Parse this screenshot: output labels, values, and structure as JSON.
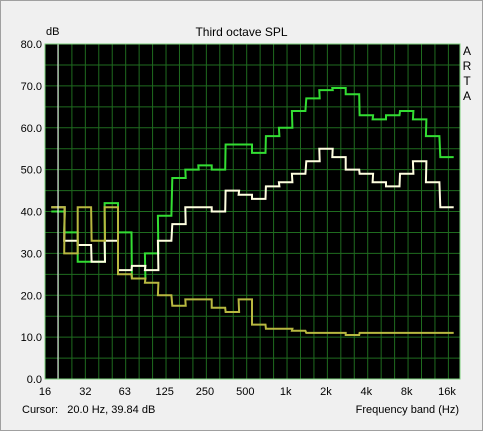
{
  "window": {
    "title": "Third octave SPL",
    "watermark_letters": [
      "A",
      "R",
      "T",
      "A"
    ],
    "status": {
      "cursor_label": "Cursor:",
      "cursor_value": "20.0 Hz, 39.84 dB"
    }
  },
  "colors": {
    "plot_background": "#000000",
    "grid": "#1f6b1f",
    "axes_border": "#7ad07a",
    "cursor_line": "#ffffff"
  },
  "chart_data": {
    "type": "line",
    "title": "Third octave SPL",
    "ylabel": "dB",
    "xlabel": "Frequency band (Hz)",
    "x_scale": "log",
    "xlim": [
      16,
      20000
    ],
    "ylim": [
      0,
      80
    ],
    "grid": true,
    "x_ticks": [
      {
        "value": 16,
        "label": "16"
      },
      {
        "value": 32,
        "label": "32"
      },
      {
        "value": 63,
        "label": "63"
      },
      {
        "value": 125,
        "label": "125"
      },
      {
        "value": 250,
        "label": "250"
      },
      {
        "value": 500,
        "label": "500"
      },
      {
        "value": 1000,
        "label": "1k"
      },
      {
        "value": 2000,
        "label": "2k"
      },
      {
        "value": 4000,
        "label": "4k"
      },
      {
        "value": 8000,
        "label": "8k"
      },
      {
        "value": 16000,
        "label": "16k"
      }
    ],
    "y_ticks": [
      {
        "value": 0,
        "label": "0.0"
      },
      {
        "value": 10,
        "label": "10.0"
      },
      {
        "value": 20,
        "label": "20.0"
      },
      {
        "value": 30,
        "label": "30.0"
      },
      {
        "value": 40,
        "label": "40.0"
      },
      {
        "value": 50,
        "label": "50.0"
      },
      {
        "value": 60,
        "label": "60.0"
      },
      {
        "value": 70,
        "label": "70.0"
      },
      {
        "value": 80,
        "label": "80.0"
      }
    ],
    "cursor_x": 20,
    "bands": [
      20,
      25,
      31.5,
      40,
      50,
      63,
      80,
      100,
      125,
      160,
      200,
      250,
      315,
      400,
      500,
      630,
      800,
      1000,
      1250,
      1600,
      2000,
      2500,
      3150,
      4000,
      5000,
      6300,
      8000,
      10000,
      12500,
      16000
    ],
    "series": [
      {
        "color": "#33dd33",
        "values": [
          40,
          35,
          28,
          28,
          42,
          35,
          24,
          30,
          39,
          48,
          50,
          51,
          50,
          56,
          56,
          54,
          58,
          60,
          64,
          67,
          69,
          69.5,
          68,
          63,
          62,
          63,
          64,
          62,
          58,
          53
        ]
      },
      {
        "color": "#ffffe0",
        "values": [
          41,
          33,
          32,
          28,
          33,
          26,
          27,
          26,
          33,
          37,
          41,
          41,
          40,
          45,
          44,
          43,
          46,
          47,
          49,
          52,
          55,
          53,
          50,
          49,
          47,
          46,
          49,
          52,
          47,
          41
        ]
      },
      {
        "color": "#b8b840",
        "values": [
          41,
          30,
          41,
          33,
          41,
          25,
          24,
          23,
          20,
          17.5,
          19,
          19,
          17,
          16,
          19,
          13,
          12,
          12,
          11.5,
          11,
          11,
          11,
          10.5,
          11,
          11,
          11,
          11,
          11,
          11,
          11
        ]
      }
    ]
  }
}
